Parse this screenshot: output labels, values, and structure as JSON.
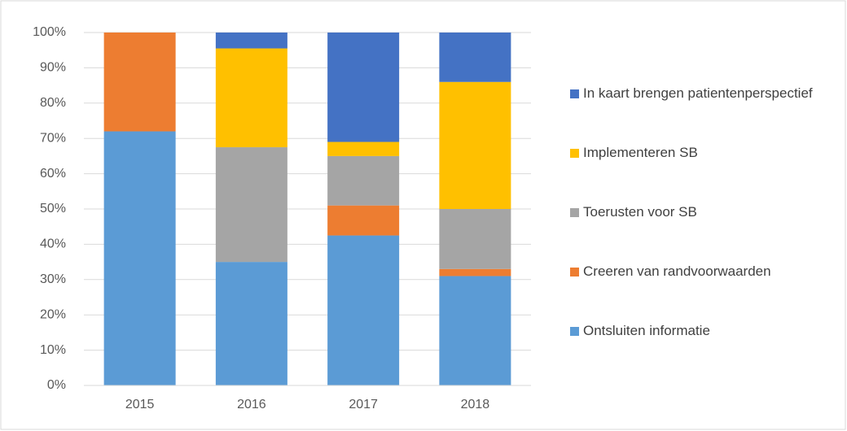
{
  "chart_data": {
    "type": "stacked_bar",
    "categories": [
      "2015",
      "2016",
      "2017",
      "2018"
    ],
    "series": [
      {
        "name": "Ontsluiten informatie",
        "color": "#5b9bd5",
        "values": [
          72,
          35,
          42.5,
          31
        ]
      },
      {
        "name": "Creeren van randvoorwaarden",
        "color": "#ed7d31",
        "values": [
          28,
          0,
          8.5,
          2
        ]
      },
      {
        "name": "Toerusten voor SB",
        "color": "#a5a5a5",
        "values": [
          0,
          32.5,
          14,
          17
        ]
      },
      {
        "name": "Implementeren SB",
        "color": "#ffc000",
        "values": [
          0,
          28,
          4,
          36
        ]
      },
      {
        "name": "In kaart brengen patientenperspectief",
        "color": "#4472c4",
        "values": [
          0,
          4.5,
          31,
          14
        ]
      }
    ],
    "ylim": [
      0,
      100
    ],
    "yticks": [
      {
        "value": 0,
        "label": "0%"
      },
      {
        "value": 10,
        "label": "10%"
      },
      {
        "value": 20,
        "label": "20%"
      },
      {
        "value": 30,
        "label": "30%"
      },
      {
        "value": 40,
        "label": "40%"
      },
      {
        "value": 50,
        "label": "50%"
      },
      {
        "value": 60,
        "label": "60%"
      },
      {
        "value": 70,
        "label": "70%"
      },
      {
        "value": 80,
        "label": "80%"
      },
      {
        "value": 90,
        "label": "90%"
      },
      {
        "value": 100,
        "label": "100%"
      }
    ],
    "grid": true,
    "legend": "right"
  }
}
